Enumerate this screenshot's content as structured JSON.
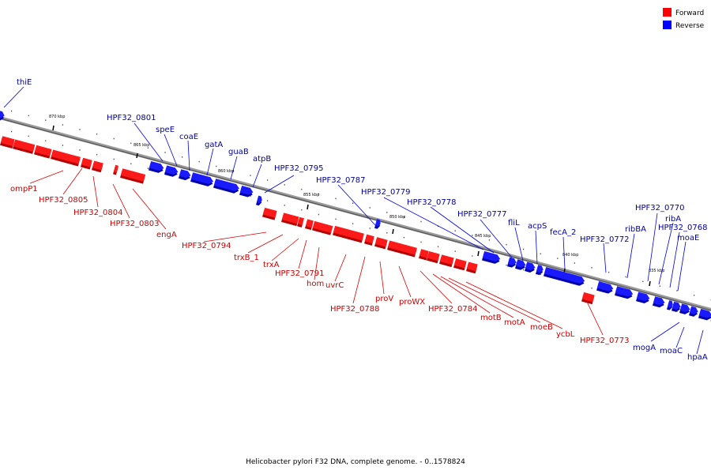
{
  "legend": {
    "forward_label": "Forward",
    "reverse_label": "Reverse",
    "forward_color": "#ff0000",
    "reverse_color": "#0000ff"
  },
  "caption": "Helicobacter pylori F32 DNA, complete genome. - 0..1578824",
  "ticks": [
    "870 kbp",
    "865 kbp",
    "860 kbp",
    "855 kbp",
    "850 kbp",
    "845 kbp",
    "840 kbp",
    "835 kbp"
  ],
  "forward_genes": [
    "ompP1",
    "HPF32_0805",
    "HPF32_0804",
    "HPF32_0803",
    "engA",
    "HPF32_0794",
    "trxB_1",
    "trxA",
    "HPF32_0791",
    "hom",
    "uvrC",
    "HPF32_0788",
    "proV",
    "proWX",
    "HPF32_0784",
    "motB",
    "motA",
    "moeB",
    "ycbL",
    "HPF32_0773"
  ],
  "reverse_genes": [
    "thiE",
    "HPF32_0801",
    "speE",
    "coaE",
    "gatA",
    "guaB",
    "atpB",
    "HPF32_0795",
    "HPF32_0787",
    "HPF32_0779",
    "HPF32_0778",
    "HPF32_0777",
    "fliL",
    "acpS",
    "fecA_2",
    "HPF32_0772",
    "ribBA",
    "HPF32_0770",
    "ribA",
    "HPF32_0768",
    "moaE",
    "mogA",
    "moaC",
    "hpaA"
  ]
}
